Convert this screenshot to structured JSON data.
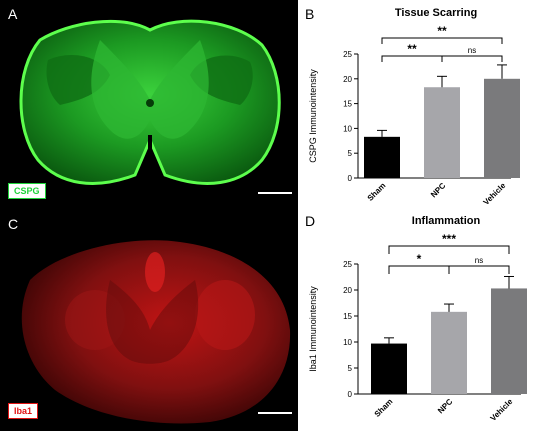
{
  "panels": {
    "a": {
      "letter": "A",
      "channel_label": "CSPG",
      "color": "#1fd23a"
    },
    "b": {
      "letter": "B"
    },
    "c": {
      "letter": "C",
      "channel_label": "Iba1",
      "color": "#e01414"
    },
    "d": {
      "letter": "D"
    }
  },
  "chart_data": [
    {
      "type": "bar",
      "title": "Tissue Scarring",
      "ylabel": "CSPG Immunointensity",
      "xlabel": "",
      "categories": [
        "Sham",
        "NPC",
        "Vehicle"
      ],
      "values": [
        8.3,
        18.3,
        20.0
      ],
      "errors": [
        1.3,
        2.2,
        2.8
      ],
      "bar_colors": [
        "#000000",
        "#a6a6aa",
        "#7a7a7c"
      ],
      "ylim": [
        0,
        25
      ],
      "yticks": [
        "0",
        "5",
        "10",
        "15",
        "20",
        "25"
      ],
      "grid": false,
      "significance": [
        {
          "from": "Sham",
          "to": "Vehicle",
          "label": "**"
        },
        {
          "from": "Sham",
          "to": "NPC",
          "label": "**"
        },
        {
          "from": "NPC",
          "to": "Vehicle",
          "label": "ns"
        }
      ]
    },
    {
      "type": "bar",
      "title": "Inflammation",
      "ylabel": "Iba1 Immunointensity",
      "xlabel": "",
      "categories": [
        "Sham",
        "NPC",
        "Vehicle"
      ],
      "values": [
        9.7,
        15.8,
        20.3
      ],
      "errors": [
        1.1,
        1.5,
        2.3
      ],
      "bar_colors": [
        "#000000",
        "#a6a6aa",
        "#7a7a7c"
      ],
      "ylim": [
        0,
        25
      ],
      "yticks": [
        "0",
        "5",
        "10",
        "15",
        "20",
        "25"
      ],
      "grid": false,
      "significance": [
        {
          "from": "Sham",
          "to": "Vehicle",
          "label": "***"
        },
        {
          "from": "Sham",
          "to": "NPC",
          "label": "*"
        },
        {
          "from": "NPC",
          "to": "Vehicle",
          "label": "ns"
        }
      ]
    }
  ]
}
